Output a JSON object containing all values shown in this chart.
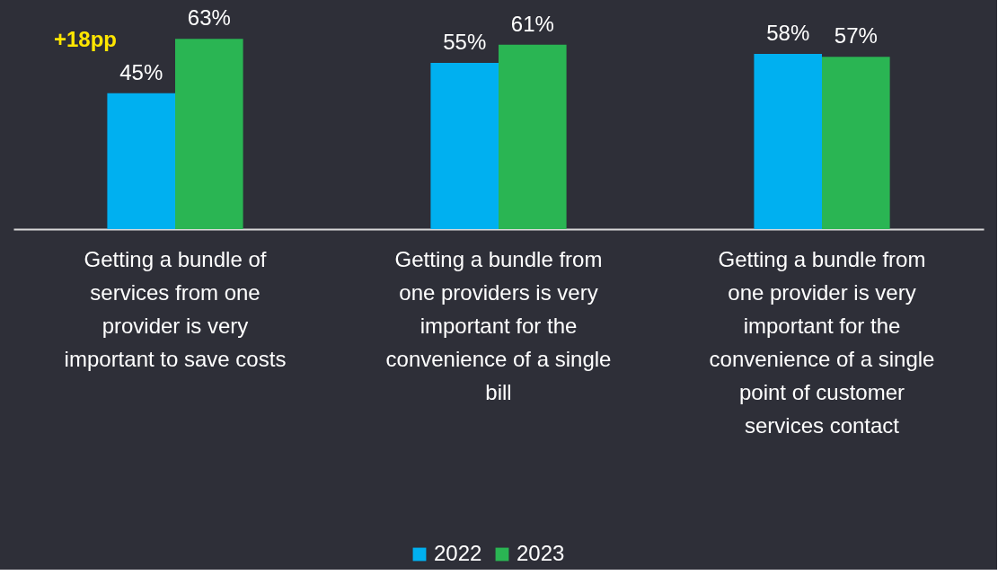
{
  "chart_data": {
    "type": "bar",
    "categories": [
      "Getting a bundle of services from one provider is very important to save costs",
      "Getting a bundle from one providers is very important for the convenience of a single bill",
      "Getting a bundle from one provider is very important for the convenience of a single point of customer services contact"
    ],
    "series": [
      {
        "name": "2022",
        "color": "#00b0f0",
        "values": [
          45,
          55,
          58
        ],
        "value_labels": [
          "45%",
          "55%",
          "58%"
        ]
      },
      {
        "name": "2023",
        "color": "#2ab553",
        "values": [
          63,
          61,
          57
        ],
        "value_labels": [
          "63%",
          "61%",
          "57%"
        ]
      }
    ],
    "annotations": [
      "+18pp"
    ],
    "legend": "bottom"
  }
}
